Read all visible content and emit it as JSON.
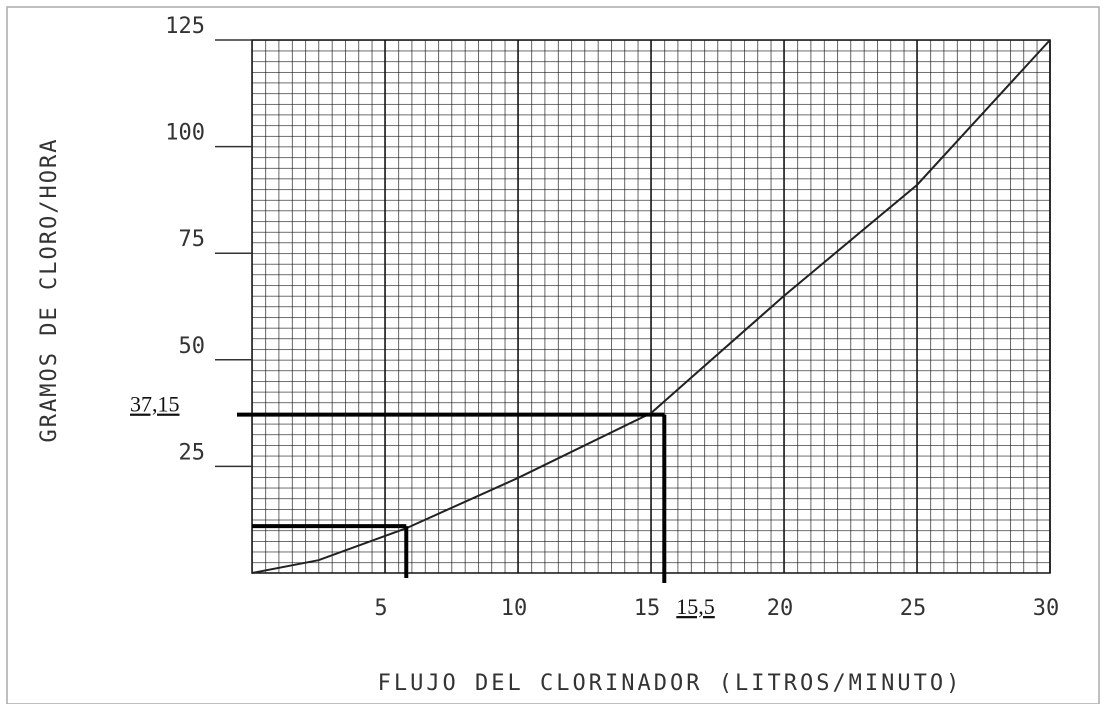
{
  "chart_data": {
    "type": "line",
    "y_label": "GRAMOS DE CLORO/HORA",
    "x_label": "FLUJO DEL CLORINADOR (LITROS/MINUTO)",
    "x": [
      0,
      2.5,
      5.8,
      10,
      15,
      20,
      25,
      30
    ],
    "values": [
      0,
      3,
      10.5,
      22.3,
      37.5,
      65,
      91,
      125
    ],
    "color": "#222222",
    "xlim": [
      0,
      30
    ],
    "xticks": [
      5,
      10,
      15,
      20,
      25,
      30
    ],
    "ylim": [
      0,
      125
    ],
    "yticks": [
      25,
      50,
      75,
      100,
      125
    ],
    "grid": true,
    "reference_lines": [
      {
        "x": 15.5,
        "y": 37.15,
        "x_label": "15,5",
        "y_label": "37,15"
      },
      {
        "x": 5.8,
        "y": 11
      }
    ]
  }
}
